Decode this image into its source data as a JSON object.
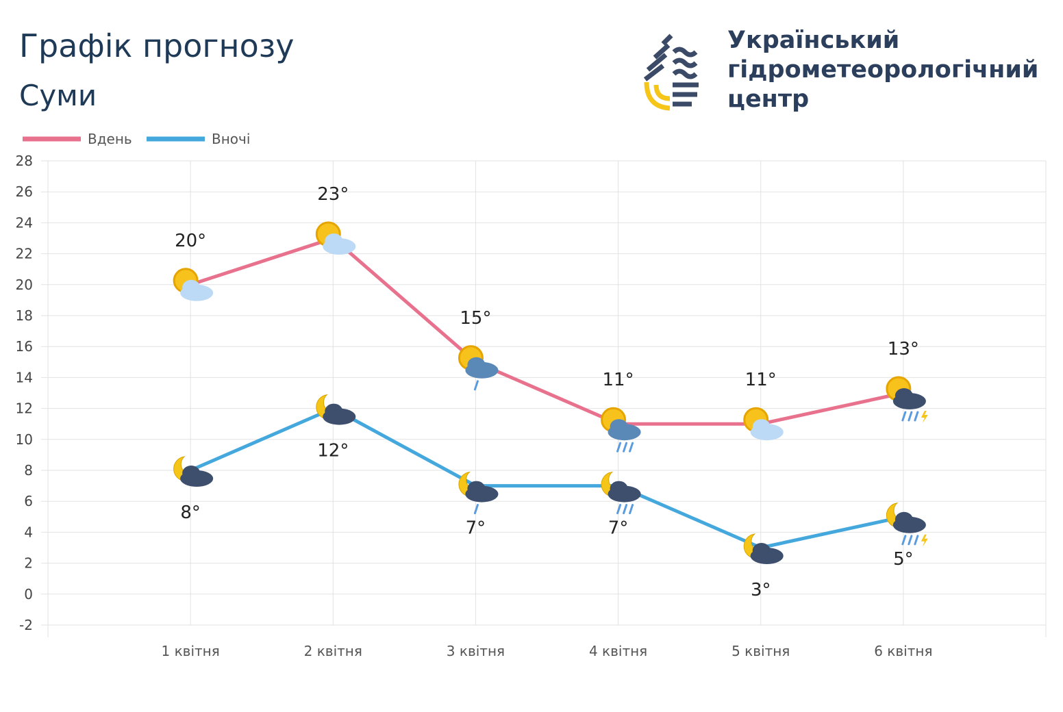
{
  "header": {
    "title": "Графік прогнозу",
    "city": "Суми"
  },
  "org": {
    "lines": [
      "Український",
      "гідрометеорологічний",
      "центр"
    ]
  },
  "colors": {
    "day": "#e8718d",
    "night": "#45a8dd",
    "text": "#1f3a56",
    "grid": "#e2e2e2"
  },
  "chart_data": {
    "type": "line",
    "categories": [
      "1 квітня",
      "2 квітня",
      "3 квітня",
      "4 квітня",
      "5 квітня",
      "6 квітня"
    ],
    "series": [
      {
        "name": "Вдень",
        "values": [
          20,
          23,
          15,
          11,
          11,
          13
        ],
        "labels": [
          "20°",
          "23°",
          "15°",
          "11°",
          "11°",
          "13°"
        ],
        "icons": [
          "sun-cloud-icon",
          "sun-cloud-icon",
          "sun-cloud-light-rain-icon",
          "sun-cloud-rain-icon",
          "sun-cloud-icon",
          "sun-storm-icon"
        ]
      },
      {
        "name": "Вночі",
        "values": [
          8,
          12,
          7,
          7,
          3,
          5
        ],
        "labels": [
          "8°",
          "12°",
          "7°",
          "7°",
          "3°",
          "5°"
        ],
        "icons": [
          "moon-cloud-icon",
          "moon-cloud-icon",
          "moon-cloud-light-rain-icon",
          "moon-cloud-rain-icon",
          "moon-cloud-icon",
          "moon-storm-icon"
        ]
      }
    ],
    "yticks": [
      "28",
      "26",
      "24",
      "22",
      "20",
      "18",
      "16",
      "14",
      "12",
      "10",
      "8",
      "6",
      "4",
      "2",
      "0",
      "-2"
    ],
    "ylim": [
      -2,
      28
    ],
    "grid": true,
    "legend": "top-left"
  }
}
